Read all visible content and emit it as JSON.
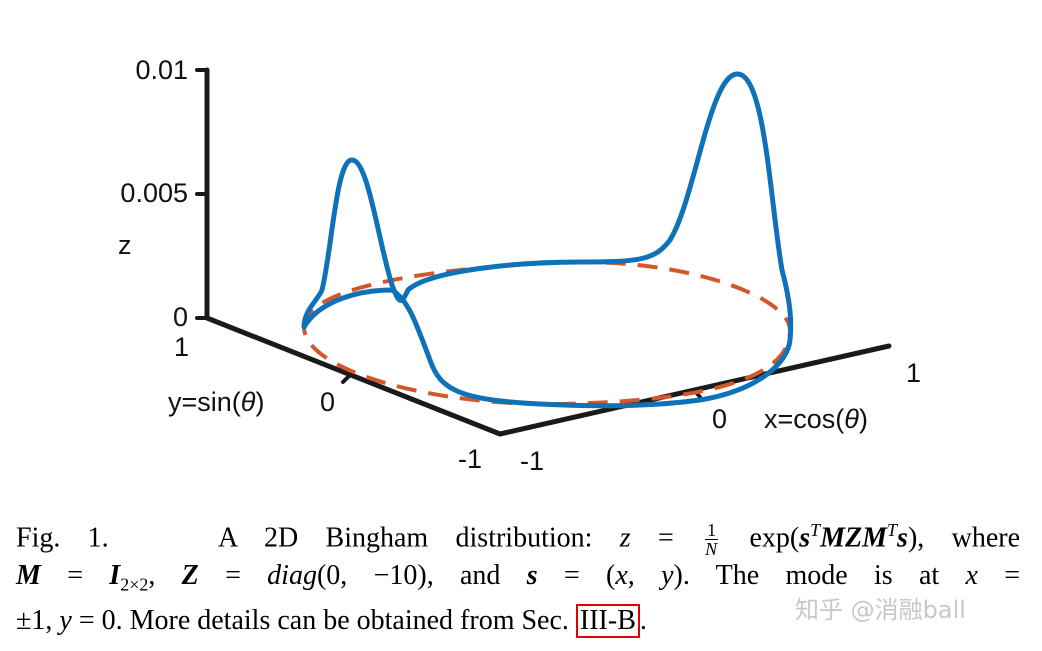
{
  "figure": {
    "z_ticks": [
      "0.01",
      "0.005",
      "0"
    ],
    "z_label": "z",
    "y_ticks": [
      "1",
      "0",
      "-1"
    ],
    "y_label_prefix": "y=sin(",
    "y_label_theta": "θ",
    "y_label_suffix": ")",
    "x_ticks": [
      "-1",
      "0",
      "1"
    ],
    "x_label_prefix": "x=cos(",
    "x_label_theta": "θ",
    "x_label_suffix": ")",
    "colors": {
      "curve": "#0f72b8",
      "base_circle": "#d4572a",
      "axes": "#1a1a1a"
    }
  },
  "chart_data": {
    "type": "line",
    "description_of_function": "z = (1/N) exp(s^T M Z M^T s), M = I, Z = diag(0,-10), s = (cos θ, sin θ)",
    "x_axis": {
      "label": "x=cos(θ)",
      "ticks": [
        "-1",
        "0",
        "1"
      ],
      "range": [
        -1,
        1
      ]
    },
    "y_axis": {
      "label": "y=sin(θ)",
      "ticks": [
        "1",
        "0",
        "-1"
      ],
      "range": [
        -1,
        1
      ]
    },
    "z_axis": {
      "label": "z",
      "ticks": [
        "0",
        "0.005",
        "0.01"
      ],
      "range": [
        0,
        0.01
      ]
    },
    "series": [
      {
        "name": "",
        "style": "solid",
        "points_xyz": [
          [
            1.0,
            0.0,
            0.0094
          ],
          [
            0.866,
            0.5,
            0.0009
          ],
          [
            0.707,
            0.707,
            6e-05
          ],
          [
            0.0,
            1.0,
            0.0
          ],
          [
            -0.707,
            0.707,
            6e-05
          ],
          [
            -0.866,
            0.5,
            0.0009
          ],
          [
            -1.0,
            0.0,
            0.0094
          ],
          [
            -0.866,
            -0.5,
            0.0009
          ],
          [
            -0.707,
            -0.707,
            6e-05
          ],
          [
            0.0,
            -1.0,
            0.0
          ],
          [
            0.707,
            -0.707,
            6e-05
          ],
          [
            0.866,
            -0.5,
            0.0009
          ],
          [
            1.0,
            0.0,
            0.0094
          ]
        ]
      },
      {
        "name": "",
        "style": "dashed",
        "points_xyz": "unit circle at z = 0"
      }
    ]
  },
  "caption": {
    "fig_label": "Fig. 1.",
    "t1": "A 2D Bingham distribution: ",
    "t2": "z",
    "t3": " = ",
    "frac_num": "1",
    "frac_den": "N",
    "t4": " exp(",
    "t5": "s",
    "t6": "T",
    "t7": "MZM",
    "t8": "T",
    "t9": "s",
    "t10": "), where",
    "l2a": "M",
    "l2b": " = ",
    "l2c": "I",
    "l2d": "2×2",
    "l2e": ", ",
    "l2f": "Z",
    "l2g": " = ",
    "l2h": "diag",
    "l2i": "(0, −10), and ",
    "l2j": "s",
    "l2k": " = (",
    "l2l": "x, y",
    "l2m": "). The mode is at ",
    "l2n": "x",
    "l2o": " =",
    "l3a": "±1, ",
    "l3b": "y",
    "l3c": " = 0. More details can be obtained from Sec. ",
    "ref": "III-B",
    "l3d": "."
  },
  "watermark": "知乎 @消融ball"
}
